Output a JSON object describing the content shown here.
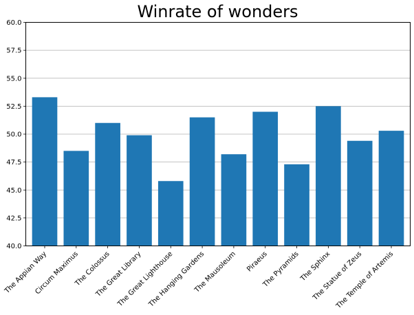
{
  "chart_data": {
    "type": "bar",
    "title": "Winrate of wonders",
    "xlabel": "",
    "ylabel": "",
    "categories": [
      "The Appian Way",
      "Circum Maximus",
      "The Colossus",
      "The Great Library",
      "The Great Lighthouse",
      "The Hanging Gardens",
      "The Mausoleum",
      "Piraeus",
      "The Pyramids",
      "The Sphinx",
      "The Statue of Zeus",
      "The Temple of Artemis"
    ],
    "values": [
      53.3,
      48.5,
      51.0,
      49.9,
      45.8,
      51.5,
      48.2,
      52.0,
      47.3,
      52.5,
      49.4,
      50.3
    ],
    "ylim": [
      40.0,
      60.0
    ],
    "yticks": [
      "40.0",
      "42.5",
      "45.0",
      "47.5",
      "50.0",
      "52.5",
      "55.0",
      "57.5",
      "60.0"
    ],
    "grid": "horizontal",
    "bar_color": "#1f77b4"
  }
}
